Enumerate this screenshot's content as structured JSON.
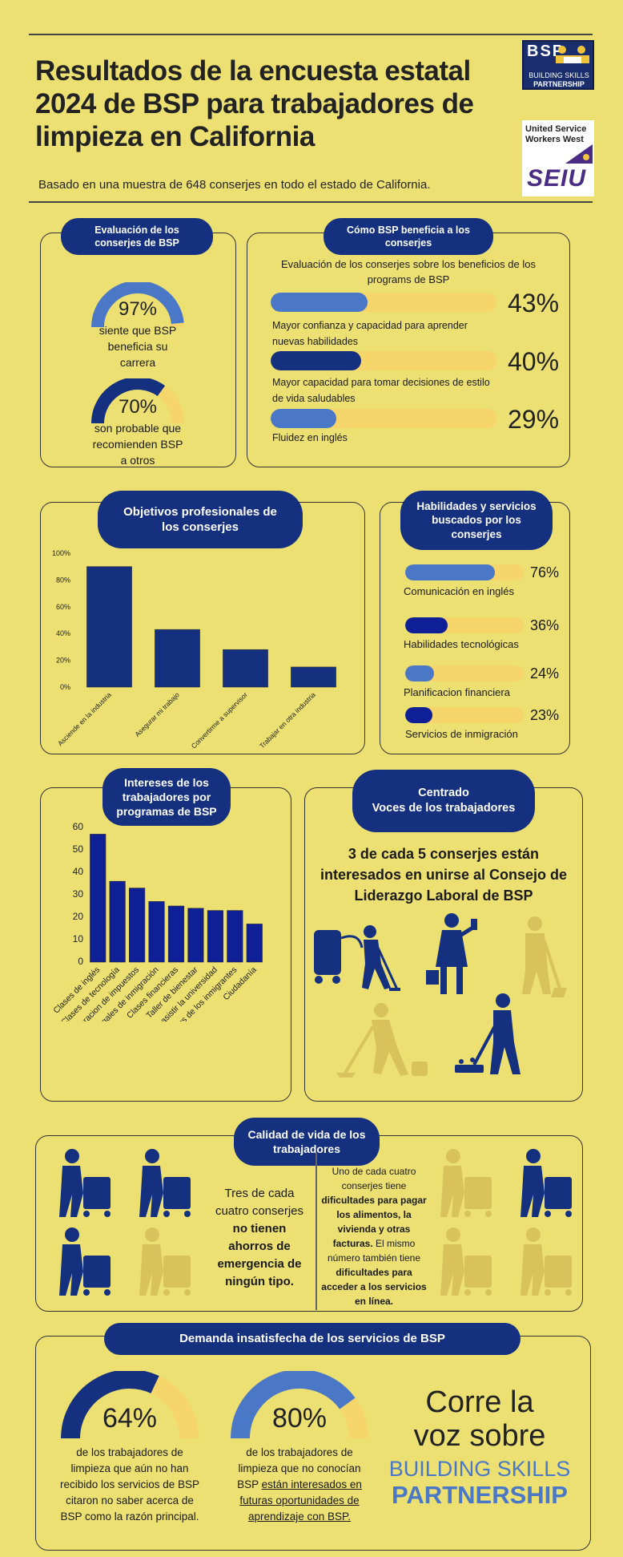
{
  "header": {
    "title_line1": "Resultados de la encuesta estatal",
    "title_line2": "2024 de BSP para trabajadores de",
    "title_line3": "limpieza en California",
    "subtitle": "Basado en una muestra de 648 conserjes en todo el estado de California.",
    "logo_bsp_letters": "BSP",
    "logo_bsp_name1": "BUILDING SKILLS",
    "logo_bsp_name2": "PARTNERSHIP",
    "logo_union1": "United Service",
    "logo_union2": "Workers West",
    "logo_seiu": "SEIU"
  },
  "evaluation": {
    "pill": "Evaluación de los conserjes de BSP",
    "stat1_value": "97%",
    "stat1_fraction": 0.97,
    "stat1_text": "siente que BSP beneficia su carrera",
    "stat2_value": "70%",
    "stat2_fraction": 0.7,
    "stat2_text": "son probable que recomienden BSP a otros"
  },
  "benefits": {
    "pill": "Cómo BSP beneficia a los conserjes",
    "intro": "Evaluación de los conserjes sobre los beneficios de los programs de BSP",
    "items": [
      {
        "label": "Mayor confianza y capacidad para aprender nuevas habilidades",
        "value": "43%",
        "fraction": 0.43,
        "color": "#4a78c6"
      },
      {
        "label": "Mayor capacidad para tomar decisiones de estilo de vida saludables",
        "value": "40%",
        "fraction": 0.4,
        "color": "#14307e"
      },
      {
        "label": "Fluidez en inglés",
        "value": "29%",
        "fraction": 0.29,
        "color": "#4a78c6"
      }
    ]
  },
  "goals": {
    "pill": "Objetivos profesionales de los conserjes"
  },
  "skills": {
    "pill": "Habilidades y servicios buscados por los conserjes",
    "items": [
      {
        "label": "Comunicación en inglés",
        "value": "76%",
        "fraction": 0.76,
        "color": "#4a78c6"
      },
      {
        "label": "Habilidades tecnológicas",
        "value": "36%",
        "fraction": 0.36,
        "color": "#0f1f96"
      },
      {
        "label": "Planificacion financiera",
        "value": "24%",
        "fraction": 0.24,
        "color": "#4a78c6"
      },
      {
        "label": "Servicios de inmigración",
        "value": "23%",
        "fraction": 0.23,
        "color": "#0f1f96"
      }
    ]
  },
  "interests": {
    "pill": "Intereses de los trabajadores por programas de BSP"
  },
  "voices": {
    "pill_line1": "Centrado",
    "pill_line2": "Voces de los trabajadores",
    "statement": "3 de cada 5 conserjes están interesados en unirse al Consejo de Liderazgo Laboral de BSP"
  },
  "quality": {
    "pill": "Calidad de vida de los trabajadores",
    "left_text_a": "Tres de cada cuatro conserjes ",
    "left_text_b": "no tienen ahorros de emergencia de ningún tipo.",
    "right_a": "Uno de cada cuatro conserjes tiene ",
    "right_b": "dificultades para pagar los alimentos, la vivienda y otras facturas.",
    "right_c": " El mismo número también tiene ",
    "right_d": "dificultades para acceder a los servicios en línea."
  },
  "demand": {
    "pill": "Demanda insatisfecha de los servicios de BSP",
    "stat1_value": "64%",
    "stat1_fraction": 0.64,
    "stat1_text": "de los trabajadores de limpieza que aún no han recibido los servicios de BSP citaron no saber acerca de BSP como la razón principal.",
    "stat2_value": "80%",
    "stat2_fraction": 0.8,
    "stat2_text_a": "de los trabajadores de limpieza que no conocían BSP ",
    "stat2_text_b": "están interesados en futuras oportunidades de aprendizaje con BSP.",
    "cta_line1": "Corre la",
    "cta_line2": "voz sobre",
    "cta_line3": "BUILDING SKILLS",
    "cta_line4": "PARTNERSHIP"
  },
  "colors": {
    "background": "#ece073",
    "navy": "#14307e",
    "mid_blue": "#4a78c6",
    "bar_blue": "#0f1f96",
    "track_yellow": "#f6d56a"
  },
  "chart_data": [
    {
      "type": "bar",
      "title": "Objetivos profesionales de los conserjes",
      "categories": [
        "Asciende en la industria",
        "Asegurar mi trabajo",
        "Convertirme a supervisor",
        "Trabajar en otra industria"
      ],
      "values": [
        90,
        43,
        28,
        15
      ],
      "ylim": [
        0,
        100
      ],
      "yticks": [
        "0%",
        "20%",
        "40%",
        "60%",
        "80%",
        "100%"
      ],
      "ytick_values": [
        0,
        20,
        40,
        60,
        80,
        100
      ],
      "color": "#14307e",
      "grid": false
    },
    {
      "type": "bar",
      "title": "Intereses de los trabajadores por programas de BSP",
      "categories": [
        "Clases de inglés",
        "Clases de tecnología",
        "Preparacion de impuestos",
        "Servicios legales de inmigración",
        "Clases financieras",
        "Taller de bienestar",
        "Apoyar mi niños asistir la universidad",
        "Taller sobre derechos de los inmigrantes",
        "Ciudadanía"
      ],
      "values": [
        57,
        36,
        33,
        27,
        25,
        24,
        23,
        23,
        17
      ],
      "ylim": [
        0,
        60
      ],
      "yticks": [
        "0",
        "10",
        "20",
        "30",
        "40",
        "50",
        "60"
      ],
      "ytick_values": [
        0,
        10,
        20,
        30,
        40,
        50,
        60
      ],
      "color": "#0f1f96",
      "grid": false
    }
  ]
}
